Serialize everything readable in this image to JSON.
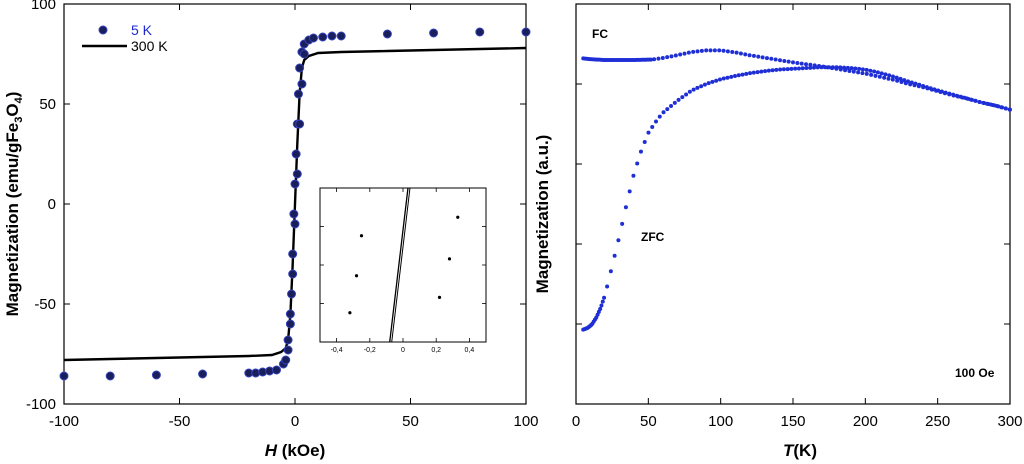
{
  "colors": {
    "loop_marker_fill": "#1a1f5c",
    "loop_marker_edge": "#3344bb",
    "line_300k": "#000000",
    "fczfc_marker": "#1f2fd6",
    "legend_5k_text": "#1e2ad0",
    "inset_marker": "#000000"
  },
  "chart_data": [
    {
      "type": "scatter",
      "title": "",
      "xlabel_italic": "H",
      "xlabel_rest": " (kOe)",
      "ylabel_parts": [
        "Magnetization (emu/gFe",
        "3",
        "O",
        "4",
        ")"
      ],
      "xlim": [
        -100,
        100
      ],
      "ylim": [
        -100,
        100
      ],
      "xticks": [
        -100,
        -50,
        0,
        50,
        100
      ],
      "yticks": [
        -100,
        -50,
        0,
        50,
        100
      ],
      "xtick_labels": [
        "-100",
        "-50",
        "0",
        "50",
        "100"
      ],
      "ytick_labels": [
        "-100",
        "-50",
        "0",
        "50",
        "100"
      ],
      "legend": {
        "position": "top-left",
        "entries": [
          "5 K",
          "300 K"
        ]
      },
      "series": [
        {
          "name": "5 K",
          "kind": "markers",
          "points": [
            [
              -100,
              -86
            ],
            [
              -80,
              -86
            ],
            [
              -60,
              -85.5
            ],
            [
              -40,
              -85
            ],
            [
              -20,
              -84.5
            ],
            [
              -17,
              -84.5
            ],
            [
              -14,
              -84
            ],
            [
              -11,
              -83.5
            ],
            [
              -8,
              -83
            ],
            [
              -5,
              -80
            ],
            [
              -3,
              -73
            ],
            [
              -2,
              -60
            ],
            [
              -1.5,
              -45
            ],
            [
              -1,
              -25
            ],
            [
              -0.5,
              -5
            ],
            [
              0,
              10
            ],
            [
              0.5,
              25
            ],
            [
              1,
              40
            ],
            [
              1.5,
              55
            ],
            [
              2,
              68
            ],
            [
              3,
              76
            ],
            [
              4,
              80
            ],
            [
              6,
              82
            ],
            [
              8,
              83
            ],
            [
              12,
              83.5
            ],
            [
              16,
              84
            ],
            [
              20,
              84
            ],
            [
              40,
              85
            ],
            [
              60,
              85.5
            ],
            [
              80,
              86
            ],
            [
              100,
              86
            ],
            [
              4,
              75
            ],
            [
              3,
              60
            ],
            [
              2,
              40
            ],
            [
              1,
              15
            ],
            [
              0,
              -10
            ],
            [
              -1,
              -35
            ],
            [
              -2,
              -55
            ],
            [
              -3,
              -68
            ],
            [
              -4,
              -78
            ]
          ]
        },
        {
          "name": "300 K",
          "kind": "line",
          "points": [
            [
              -100,
              -78
            ],
            [
              -80,
              -77.5
            ],
            [
              -60,
              -77
            ],
            [
              -40,
              -76.5
            ],
            [
              -20,
              -76
            ],
            [
              -10,
              -75.5
            ],
            [
              -6,
              -74
            ],
            [
              -4,
              -72
            ],
            [
              -3,
              -68
            ],
            [
              -2,
              -55
            ],
            [
              -1,
              -30
            ],
            [
              0,
              0
            ],
            [
              1,
              30
            ],
            [
              2,
              55
            ],
            [
              3,
              68
            ],
            [
              4,
              72
            ],
            [
              6,
              74
            ],
            [
              10,
              75.5
            ],
            [
              20,
              76
            ],
            [
              40,
              76.5
            ],
            [
              60,
              77
            ],
            [
              80,
              77.5
            ],
            [
              100,
              78
            ]
          ]
        }
      ]
    },
    {
      "type": "scatter",
      "title": "",
      "note": "inset zoom of the hysteresis loop near zero field",
      "xlim": [
        -0.5,
        0.5
      ],
      "ylim": [
        -1,
        1
      ],
      "xticks": [
        -0.4,
        -0.2,
        0,
        0.2,
        0.4
      ],
      "xtick_labels": [
        "-0,4",
        "-0,2",
        "0",
        "0,2",
        "0,4"
      ],
      "series": [
        {
          "name": "5 K",
          "kind": "markers",
          "points": [
            [
              -0.32,
              -0.62
            ],
            [
              -0.28,
              -0.14
            ],
            [
              -0.25,
              0.38
            ],
            [
              0.22,
              -0.42
            ],
            [
              0.28,
              0.08
            ],
            [
              0.33,
              0.62
            ]
          ]
        },
        {
          "name": "300 K",
          "kind": "line",
          "points": [
            [
              -0.08,
              -1
            ],
            [
              0.03,
              1
            ]
          ]
        }
      ]
    },
    {
      "type": "scatter",
      "title": "",
      "xlabel_italic": "T",
      "xlabel_rest": "(K)",
      "ylabel": "Magnetization (a.u.)",
      "xlim": [
        0,
        300
      ],
      "ylim": [
        0,
        1
      ],
      "xticks": [
        0,
        50,
        100,
        150,
        200,
        250,
        300
      ],
      "xtick_labels": [
        "0",
        "50",
        "100",
        "150",
        "200",
        "250",
        "300"
      ],
      "yticks": [
        0.2,
        0.4,
        0.6,
        0.8
      ],
      "annotations": [
        "FC",
        "ZFC",
        "100 Oe"
      ],
      "series": [
        {
          "name": "FC",
          "points": [
            [
              5,
              0.864
            ],
            [
              10,
              0.862
            ],
            [
              20,
              0.86
            ],
            [
              30,
              0.86
            ],
            [
              40,
              0.86
            ],
            [
              52,
              0.861
            ],
            [
              60,
              0.865
            ],
            [
              70,
              0.872
            ],
            [
              80,
              0.88
            ],
            [
              90,
              0.884
            ],
            [
              100,
              0.884
            ],
            [
              110,
              0.879
            ],
            [
              120,
              0.872
            ],
            [
              130,
              0.866
            ],
            [
              140,
              0.86
            ],
            [
              150,
              0.854
            ],
            [
              160,
              0.849
            ],
            [
              170,
              0.844
            ],
            [
              180,
              0.838
            ],
            [
              190,
              0.832
            ],
            [
              200,
              0.826
            ],
            [
              210,
              0.818
            ],
            [
              220,
              0.81
            ],
            [
              230,
              0.8
            ],
            [
              240,
              0.792
            ],
            [
              250,
              0.782
            ],
            [
              260,
              0.772
            ],
            [
              270,
              0.764
            ],
            [
              280,
              0.754
            ],
            [
              290,
              0.746
            ],
            [
              300,
              0.736
            ]
          ]
        },
        {
          "name": "ZFC",
          "points": [
            [
              5,
              0.186
            ],
            [
              8,
              0.19
            ],
            [
              11,
              0.199
            ],
            [
              14,
              0.216
            ],
            [
              17,
              0.24
            ],
            [
              20,
              0.272
            ],
            [
              25,
              0.345
            ],
            [
              30,
              0.42
            ],
            [
              35,
              0.5
            ],
            [
              40,
              0.575
            ],
            [
              45,
              0.632
            ],
            [
              50,
              0.678
            ],
            [
              55,
              0.705
            ],
            [
              60,
              0.728
            ],
            [
              70,
              0.758
            ],
            [
              80,
              0.784
            ],
            [
              90,
              0.8
            ],
            [
              100,
              0.812
            ],
            [
              110,
              0.82
            ],
            [
              120,
              0.827
            ],
            [
              130,
              0.832
            ],
            [
              140,
              0.836
            ],
            [
              150,
              0.838
            ],
            [
              160,
              0.84
            ],
            [
              170,
              0.842
            ],
            [
              180,
              0.842
            ],
            [
              190,
              0.84
            ],
            [
              200,
              0.836
            ],
            [
              210,
              0.828
            ],
            [
              220,
              0.818
            ],
            [
              230,
              0.806
            ],
            [
              240,
              0.795
            ],
            [
              250,
              0.784
            ],
            [
              260,
              0.774
            ],
            [
              270,
              0.764
            ],
            [
              280,
              0.754
            ],
            [
              290,
              0.746
            ],
            [
              300,
              0.736
            ]
          ]
        }
      ]
    }
  ]
}
